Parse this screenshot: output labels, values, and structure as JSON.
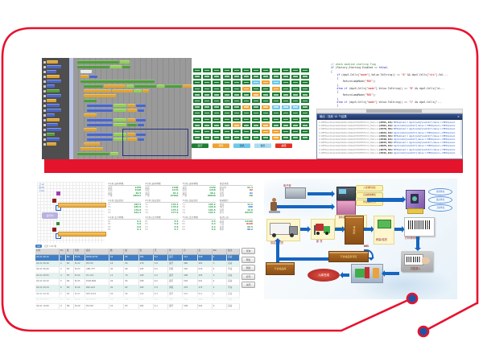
{
  "slide": {
    "frame_color": "#e8112d",
    "bar_color": "#e3142b",
    "dot_color": "#1d56a5"
  },
  "blockly": {
    "toolbox": [
      [
        "o",
        14
      ],
      [
        "b",
        18
      ],
      [
        "b",
        12
      ],
      [
        "o",
        16
      ],
      [
        "b",
        18
      ],
      [
        "b",
        10
      ],
      [
        "g",
        16
      ],
      [
        "b",
        18
      ],
      [
        "o",
        12
      ],
      [
        "b",
        16
      ],
      [
        "b",
        18
      ],
      [
        "b",
        10
      ],
      [
        "o",
        16
      ],
      [
        "b",
        14
      ],
      [
        "b",
        18
      ],
      [
        "g",
        10
      ],
      [
        "b",
        16
      ],
      [
        "o",
        12
      ]
    ],
    "rows": [
      {
        "x": 2,
        "segs": [
          [
            "g",
            52
          ],
          [
            "G",
            12
          ]
        ]
      },
      {
        "x": 2,
        "segs": [
          [
            "g",
            40
          ],
          [
            "G",
            14
          ],
          [
            "g",
            10
          ]
        ]
      },
      {
        "x": 6,
        "segs": [
          [
            "w",
            14
          ]
        ]
      },
      {
        "x": 6,
        "segs": [
          [
            "o",
            10
          ],
          [
            "b",
            10
          ]
        ]
      },
      {
        "x": 6,
        "segs": [
          [
            "g",
            92
          ]
        ]
      },
      {
        "x": 10,
        "segs": [
          [
            "g",
            30
          ],
          [
            "o",
            34
          ],
          [
            "G",
            12
          ],
          [
            "g",
            34
          ],
          [
            "G",
            12
          ],
          [
            "g",
            26
          ],
          [
            "o",
            14
          ]
        ]
      },
      {
        "x": 10,
        "segs": [
          [
            "o",
            34
          ],
          [
            "o",
            26
          ],
          [
            "G",
            10
          ],
          [
            "o",
            8
          ]
        ]
      },
      {
        "x": 10,
        "segs": [
          [
            "o",
            40
          ]
        ]
      },
      {
        "x": 10,
        "segs": [
          [
            "g",
            16
          ]
        ]
      },
      {
        "x": 14,
        "segs": [
          [
            "b",
            32
          ],
          [
            "G",
            16
          ],
          [
            "o",
            10
          ],
          [
            "b",
            12
          ]
        ]
      },
      {
        "x": 14,
        "segs": [
          [
            "b",
            32
          ],
          [
            "G",
            16
          ],
          [
            "o",
            12
          ],
          [
            "b",
            8
          ]
        ]
      },
      {
        "x": 10,
        "segs": [
          [
            "o",
            16
          ]
        ]
      },
      {
        "x": 14,
        "segs": [
          [
            "b",
            32
          ],
          [
            "G",
            16
          ],
          [
            "o",
            10
          ],
          [
            "b",
            12
          ]
        ]
      },
      {
        "x": 14,
        "segs": [
          [
            "b",
            32
          ],
          [
            "G",
            16
          ],
          [
            "g",
            12
          ],
          [
            "b",
            8
          ]
        ]
      },
      {
        "x": 10,
        "segs": [
          [
            "o",
            16
          ]
        ]
      },
      {
        "x": 14,
        "segs": [
          [
            "b",
            32
          ],
          [
            "G",
            16
          ],
          [
            "o",
            10
          ],
          [
            "b",
            12
          ]
        ]
      },
      {
        "x": 14,
        "segs": [
          [
            "b",
            32
          ],
          [
            "G",
            16
          ],
          [
            "o",
            12
          ],
          [
            "b",
            8
          ]
        ]
      },
      {
        "x": 10,
        "segs": [
          [
            "o",
            20
          ]
        ]
      },
      {
        "x": 6,
        "segs": [
          [
            "o",
            28
          ]
        ]
      },
      {
        "x": 2,
        "segs": [
          [
            "g",
            40
          ],
          [
            "G",
            10
          ]
        ]
      }
    ]
  },
  "status_board": {
    "grid": [
      "gggggggggggg",
      "gggggggggggg",
      "ggggggcocggg",
      "gggggoggoggg",
      "ggggggoggggg",
      "gggggggggggg",
      "gggggogocccg",
      "gggggggggggg",
      "gggggggggggg",
      "ggggoggogggg",
      "gggggggooggg",
      "ggggggggoggg"
    ],
    "legend": [
      {
        "label": "运行",
        "color": "#1e7e34"
      },
      {
        "label": "待料",
        "color": "#f0a232"
      },
      {
        "label": "调机",
        "color": "#6fc8e8"
      },
      {
        "label": "保养",
        "color": "#aadcf0"
      },
      {
        "label": "故障",
        "color": "#e03020"
      }
    ]
  },
  "code_editor": {
    "lines": [
      "// check machine starting flag",
      "if (Factory_Starting.Enabled == false)",
      "{",
      "    if (dgvS.Cells[\"mode\"].Value.ToString() == \"A\" && dgvS.Cells[\"sts\"].Val...",
      "    {",
      "        ReturnLampMode(\"RES\");",
      "    }",
      "    else if (dgvS.Cells[\"mode\"].Value.ToString() == \"B\" && dgvS.Cells[\"st...",
      "    {",
      "        ReturnLampMode(\"RES\");",
      "    }",
      "    else if (dgvS.Cells[\"mode\"].Value.ToString() == \"C\" && dgvS.Cells[\"...",
      "    }"
    ],
    "output_title": "输出 - 找到 10 个结果",
    "output_close": "×",
    "logs": [
      {
        "path": "C:\\MES\\AutoUpdate\\StationData\\PC5\\PRT\\Form_Main.cs",
        "pos": "(2551, 19):",
        "msg": "MESUpload = dgvS.Cells[\"postinfo\"].Value = MESUpload;"
      },
      {
        "path": "C:\\MES\\AutoUpdate\\StationData\\PC5\\PRT\\Form_Main.cs",
        "pos": "(2591, 19):",
        "msg": "dgvS.Cells[\"postinfo\"].Value = MESUpload → MESUpload;"
      },
      {
        "path": "C:\\MES\\AutoUpdate\\StationData\\PC5\\PRT\\Form_Main.cs",
        "pos": "(2579, 36):",
        "msg": "MESUpload = dgvS.Cells[\"postinfo\"].Value = MESUpload;"
      },
      {
        "path": "C:\\MES\\AutoUpdate\\StationData\\PC5\\PRT\\Form_Main.cs",
        "pos": "(2622, 19):",
        "msg": "dgvS.Cells[\"postinfo\"].Value = MESUpload → MESUpload;"
      },
      {
        "path": "C:\\MES\\AutoUpdate\\StationData\\PC5\\PRT\\Form_Main.cs",
        "pos": "(2594, 36):",
        "msg": "MESUpload = dgvS.Cells[\"postinfo\"].Value = MESUpload;"
      },
      {
        "path": "C:\\MES\\AutoUpdate\\StationData\\PC5\\PRT\\Form_Main.cs",
        "pos": "(2540, 19):",
        "msg": "dgvS.Cells[\"postinfo\"].Value = MESUpload → MESUpload;"
      },
      {
        "path": "C:\\MES\\AutoUpdate\\StationData\\PC5\\PRT\\Form_Main.cs",
        "pos": "(2633, 36):",
        "msg": "MESUpload = dgvS.Cells[\"postinfo\"].Value = MESUpload;"
      },
      {
        "path": "C:\\MES\\AutoUpdate\\StationData\\PC5\\PRT\\Form_Main.cs",
        "pos": "(2625, 19):",
        "msg": "dgvS.Cells[\"postinfo\"].Value = MESUpload → MESUpload;"
      },
      {
        "path": "C:\\MES\\AutoUpdate\\StationData\\PC5\\PRT\\Form_Main.cs",
        "pos": "(2679, 36):",
        "msg": "MESUpload = dgvS.Cells[\"postinfo\"].Value = MESUpload;"
      },
      {
        "path": "C:\\MES\\AutoUpdate\\StationData\\PC5\\PRT\\Form_Main.cs",
        "pos": "(2541, 19):",
        "msg": "dgvS.Cells[\"postinfo\"].Value = MESUpload → MESUpload;"
      }
    ]
  },
  "monitor": {
    "side_notes": [
      "上:12",
      "中:08",
      "下:04"
    ],
    "run_button": "运行中",
    "panels": [
      {
        "h": "1号机 运转参数",
        "rows": [
          [
            "设定",
            "1250"
          ],
          [
            "实际",
            "1248"
          ],
          [
            "速度",
            "36.5"
          ],
          [
            "产量",
            "08421"
          ]
        ]
      },
      {
        "h": "2号机 运转参数",
        "rows": [
          [
            "设定",
            "1180"
          ],
          [
            "实际",
            "1176"
          ],
          [
            "速度",
            "34.2"
          ],
          [
            "产量",
            "07962"
          ]
        ]
      },
      {
        "h": "3号机 运转参数",
        "rows": [
          [
            "设定",
            "1320"
          ],
          [
            "实际",
            "1318"
          ],
          [
            "速度",
            "38.1"
          ],
          [
            "产量",
            "08830"
          ]
        ]
      },
      {
        "h": "综合状态",
        "rows": [
          [
            "稼动率",
            "92.4"
          ],
          [
            "警报",
            "02",
            "r"
          ],
          [
            "待机",
            "01",
            "b"
          ],
          [
            "连线",
            "OK"
          ]
        ]
      },
      {
        "h": "1号机 温度监控",
        "rows": [
          [
            "T1",
            "182.5"
          ],
          [
            "T2",
            "185.0"
          ],
          [
            "T3",
            "179.8"
          ],
          [
            "T4",
            "181.2"
          ]
        ]
      },
      {
        "h": "2号机 温度监控",
        "rows": [
          [
            "T1",
            "176.3"
          ],
          [
            "T2",
            "178.9"
          ],
          [
            "T3",
            "175.4"
          ],
          [
            "T4",
            "177.0"
          ]
        ]
      },
      {
        "h": "3号机 温度监控",
        "rows": [
          [
            "T1",
            "195.2"
          ],
          [
            "T2",
            "196.8"
          ],
          [
            "T3",
            "193.5"
          ],
          [
            "T4",
            "194.1"
          ]
        ]
      },
      {
        "h": "能耗统计",
        "rows": [
          [
            "电流",
            "42.6"
          ],
          [
            "电压",
            "380",
            "b"
          ],
          [
            "功率",
            "16.8"
          ],
          [
            "累计",
            "90245"
          ]
        ]
      },
      {
        "h": "1号机 压力参数",
        "rows": [
          [
            "P1",
            "6.2"
          ],
          [
            "P2",
            "5.8"
          ],
          [
            "P3",
            "6.0"
          ],
          [
            "P4",
            "6.1"
          ]
        ]
      },
      {
        "h": "2号机 压力参数",
        "rows": [
          [
            "P1",
            "5.5"
          ],
          [
            "P2",
            "5.9"
          ],
          [
            "P3",
            "5.6"
          ],
          [
            "P4",
            "5.7"
          ]
        ]
      },
      {
        "h": "3号机 压力参数",
        "rows": [
          [
            "P1",
            "6.5"
          ],
          [
            "P2",
            "6.3"
          ],
          [
            "P3",
            "6.4"
          ],
          [
            "P4",
            "6.6"
          ]
        ]
      },
      {
        "h": "班次汇总",
        "rows": [
          [
            "良品",
            "24180"
          ],
          [
            "不良",
            "0126",
            "r"
          ],
          [
            "良率",
            "99.5"
          ],
          [
            "效率",
            "96.2",
            "b"
          ]
        ]
      }
    ]
  },
  "table": {
    "toolbar_left": "记录 128 笔",
    "page_chip": "10",
    "headers": [
      "时间",
      "No",
      "批",
      "机台",
      "品名",
      "数",
      "速",
      "温",
      "压",
      "状",
      "计",
      "良",
      "NG",
      "备注"
    ],
    "selected_row": 0,
    "rows": [
      [
        "04-01 08:12",
        "1",
        "B2",
        "M-01",
        "PA66-GF30",
        "24",
        "85",
        "182",
        "6.2",
        "运行",
        "512",
        "508",
        "4",
        "自动"
      ],
      [
        "04-01 08:26",
        "2",
        "B2",
        "M-02",
        "PP-T20",
        "18",
        "80",
        "176",
        "5.8",
        "运行",
        "486",
        "483",
        "3",
        "自动"
      ],
      [
        "04-01 08:40",
        "3",
        "B3",
        "M-03",
        "ABS-757",
        "30",
        "88",
        "195",
        "6.5",
        "待机",
        "520",
        "516",
        "4",
        "手动"
      ],
      [
        "04-01 08:55",
        "4",
        "B3",
        "M-04",
        "PC-110",
        "12",
        "76",
        "168",
        "5.2",
        "运行",
        "498",
        "495",
        "3",
        "自动"
      ],
      [
        "04-01 09:10",
        "5",
        "B4",
        "M-05",
        "POM-M90",
        "26",
        "84",
        "188",
        "6.0",
        "运行",
        "505",
        "501",
        "4",
        "自动"
      ],
      [
        "04-01 09:24",
        "6",
        "B4",
        "M-06",
        "PA6-G15",
        "20",
        "82",
        "180",
        "5.9",
        "调机",
        "478",
        "474",
        "4",
        "手动"
      ],
      [
        "04-01 09:38",
        "7",
        "B5",
        "M-07",
        "PBT-3030",
        "28",
        "86",
        "190",
        "6.3",
        "运行",
        "515",
        "511",
        "4",
        "自动"
      ],
      [
        "04-01 09:52",
        "8",
        "B5",
        "M-08",
        "PE-HD80",
        "16",
        "78",
        "172",
        "5.5",
        "运行",
        "492",
        "489",
        "3",
        "自动"
      ],
      [
        "04-01 10:06",
        "9",
        "B6",
        "M-09",
        "PS-525",
        "22",
        "83",
        "184",
        "6.1",
        "运行",
        "508",
        "504",
        "4",
        "自动"
      ]
    ],
    "buttons": [
      "查询",
      "导出",
      "刷新",
      "打印",
      "关闭"
    ]
  },
  "flow": {
    "operator": "作业员",
    "scale": "电子秤",
    "station_label": "现场自动称重装置 RS-232",
    "left_chips": [
      "入库资料对比",
      "自动称重检核",
      "作业资料上传"
    ],
    "right_chips": [
      "库存作业",
      "盘点作业",
      "上架作业"
    ],
    "truck": "供应商送货",
    "unload": "卸 货",
    "buffer": "待检区",
    "inspect": "称量/验货",
    "barcode": "打印条码标签",
    "scan": "扫描录入",
    "ng": "NG",
    "reject_buffer": "不合格品暂存区",
    "reject_store": "不合格品库",
    "done": "入库完成"
  }
}
